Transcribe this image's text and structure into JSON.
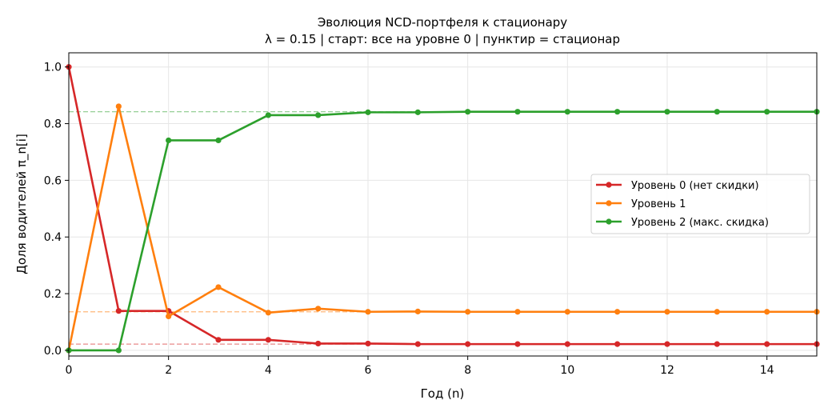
{
  "chart_data": {
    "type": "line",
    "title": "Эволюция NCD-портфеля к стационару",
    "subtitle": "λ = 0.15  |  старт: все на уровне 0  |  пунктир = стационар",
    "xlabel": "Год (n)",
    "ylabel": "Доля водителей π_n[i]",
    "xlim": [
      0,
      15
    ],
    "ylim": [
      -0.02,
      1.05
    ],
    "xticks": [
      0,
      2,
      4,
      6,
      8,
      10,
      12,
      14
    ],
    "yticks": [
      0.0,
      0.2,
      0.4,
      0.6,
      0.8,
      1.0
    ],
    "grid": true,
    "legend_position": "center-right",
    "x": [
      0,
      1,
      2,
      3,
      4,
      5,
      6,
      7,
      8,
      9,
      10,
      11,
      12,
      13,
      14,
      15
    ],
    "series": [
      {
        "name": "Уровень 0 (нет скидки)",
        "color": "#d62728",
        "values": [
          1.0,
          0.139,
          0.139,
          0.037,
          0.037,
          0.024,
          0.024,
          0.022,
          0.022,
          0.022,
          0.022,
          0.022,
          0.022,
          0.022,
          0.022,
          0.022
        ],
        "stationary": 0.022
      },
      {
        "name": "Уровень 1",
        "color": "#ff7f0e",
        "values": [
          0.0,
          0.861,
          0.12,
          0.223,
          0.133,
          0.147,
          0.136,
          0.137,
          0.136,
          0.136,
          0.136,
          0.136,
          0.136,
          0.136,
          0.136,
          0.136
        ],
        "stationary": 0.136
      },
      {
        "name": "Уровень 2 (макс. скидка)",
        "color": "#2ca02c",
        "values": [
          0.0,
          0.0,
          0.741,
          0.741,
          0.83,
          0.83,
          0.84,
          0.84,
          0.842,
          0.842,
          0.842,
          0.842,
          0.842,
          0.842,
          0.842,
          0.842
        ],
        "stationary": 0.842
      }
    ]
  }
}
